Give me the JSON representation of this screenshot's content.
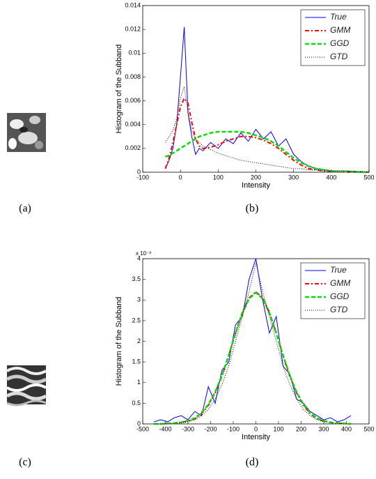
{
  "captions": [
    "(a)",
    "(b)",
    "(c)",
    "(d)"
  ],
  "chart_data": [
    {
      "type": "line",
      "xlabel": "Intensity",
      "ylabel": "Histogram of the Subband",
      "x": [
        -40,
        -30,
        -20,
        -10,
        0,
        10,
        20,
        30,
        40,
        50,
        60,
        80,
        100,
        120,
        140,
        160,
        180,
        200,
        220,
        240,
        260,
        280,
        300,
        320,
        340,
        360,
        380,
        400,
        440,
        480,
        500
      ],
      "series": [
        {
          "name": "True",
          "color": "#0000ff",
          "style": "solid",
          "values": [
            0.0003,
            0.001,
            0.002,
            0.004,
            0.008,
            0.0122,
            0.005,
            0.003,
            0.0015,
            0.002,
            0.0018,
            0.0025,
            0.002,
            0.0028,
            0.0024,
            0.0033,
            0.0026,
            0.0036,
            0.0028,
            0.0034,
            0.0022,
            0.0028,
            0.0015,
            0.0009,
            0.0005,
            0.0003,
            0.0002,
            0.0001,
            0.0001,
            5e-05,
            0
          ]
        },
        {
          "name": "GMM",
          "color": "#ff0000",
          "style": "dashdot",
          "values": [
            0.0003,
            0.0012,
            0.0025,
            0.004,
            0.0055,
            0.0062,
            0.0058,
            0.0042,
            0.0028,
            0.0022,
            0.002,
            0.0021,
            0.0023,
            0.0026,
            0.0028,
            0.003,
            0.003,
            0.0029,
            0.0027,
            0.0024,
            0.002,
            0.0015,
            0.001,
            0.0006,
            0.0003,
            0.0002,
            0.0001,
            5e-05,
            0,
            0,
            0
          ]
        },
        {
          "name": "GGD",
          "color": "#00dd00",
          "style": "dashed",
          "values": [
            0.0013,
            0.0014,
            0.0016,
            0.0018,
            0.002,
            0.0022,
            0.0024,
            0.0026,
            0.0028,
            0.003,
            0.0031,
            0.0033,
            0.0034,
            0.0034,
            0.0034,
            0.0034,
            0.0033,
            0.0031,
            0.0029,
            0.0026,
            0.0022,
            0.0017,
            0.0012,
            0.0008,
            0.0005,
            0.0003,
            0.0002,
            0.0001,
            5e-05,
            0,
            0
          ]
        },
        {
          "name": "GTD",
          "color": "#000000",
          "style": "dotted",
          "values": [
            0.0025,
            0.003,
            0.0035,
            0.0045,
            0.0062,
            0.0072,
            0.005,
            0.0035,
            0.0028,
            0.0025,
            0.0022,
            0.0019,
            0.0016,
            0.0014,
            0.0012,
            0.001,
            0.0009,
            0.0008,
            0.0007,
            0.0006,
            0.0005,
            0.0004,
            0.0003,
            0.0003,
            0.0002,
            0.0002,
            0.0001,
            0.0001,
            0.0001,
            5e-05,
            5e-05
          ]
        }
      ],
      "xlim": [
        -100,
        500
      ],
      "xticks": [
        -100,
        0,
        100,
        200,
        300,
        400,
        500
      ],
      "ylim": [
        0,
        0.014
      ],
      "yticks": [
        0,
        0.002,
        0.004,
        0.006,
        0.008,
        0.01,
        0.012,
        0.014
      ],
      "legend": "upper right"
    },
    {
      "type": "line",
      "xlabel": "Intensity",
      "ylabel": "Histogram of the Subband",
      "y_exponent_label": "x 10⁻³",
      "x": [
        -450,
        -420,
        -390,
        -360,
        -330,
        -300,
        -270,
        -240,
        -210,
        -180,
        -150,
        -120,
        -90,
        -60,
        -30,
        0,
        30,
        60,
        90,
        120,
        150,
        180,
        210,
        240,
        270,
        300,
        330,
        360,
        390,
        420
      ],
      "series": [
        {
          "name": "True",
          "color": "#0000ff",
          "style": "solid",
          "values": [
            0.05,
            0.1,
            0.05,
            0.15,
            0.2,
            0.1,
            0.3,
            0.2,
            0.9,
            0.5,
            1.3,
            1.5,
            2.4,
            2.6,
            3.5,
            4.0,
            3.0,
            2.2,
            2.6,
            1.4,
            1.2,
            0.6,
            0.5,
            0.3,
            0.2,
            0.1,
            0.15,
            0.05,
            0.1,
            0.2
          ]
        },
        {
          "name": "GMM",
          "color": "#ff0000",
          "style": "dashdot",
          "values": [
            0,
            0,
            0.01,
            0.02,
            0.04,
            0.07,
            0.12,
            0.25,
            0.45,
            0.75,
            1.15,
            1.65,
            2.2,
            2.7,
            3.05,
            3.2,
            3.05,
            2.7,
            2.2,
            1.65,
            1.15,
            0.75,
            0.45,
            0.25,
            0.12,
            0.07,
            0.04,
            0.02,
            0.01,
            0
          ]
        },
        {
          "name": "GGD",
          "color": "#00dd00",
          "style": "dashed",
          "values": [
            0,
            0,
            0.01,
            0.02,
            0.04,
            0.08,
            0.14,
            0.27,
            0.47,
            0.77,
            1.17,
            1.66,
            2.2,
            2.68,
            3.03,
            3.18,
            3.03,
            2.68,
            2.2,
            1.66,
            1.17,
            0.77,
            0.47,
            0.27,
            0.14,
            0.08,
            0.04,
            0.02,
            0.01,
            0
          ]
        },
        {
          "name": "GTD",
          "color": "#000000",
          "style": "dotted",
          "values": [
            0,
            0,
            0,
            0.01,
            0.02,
            0.05,
            0.1,
            0.2,
            0.35,
            0.6,
            0.95,
            1.4,
            2.0,
            2.6,
            3.2,
            3.9,
            3.2,
            2.6,
            2.0,
            1.4,
            0.95,
            0.6,
            0.35,
            0.2,
            0.1,
            0.05,
            0.02,
            0.01,
            0,
            0
          ]
        }
      ],
      "xlim": [
        -500,
        500
      ],
      "xticks": [
        -500,
        -400,
        -300,
        -200,
        -100,
        0,
        100,
        200,
        300,
        400,
        500
      ],
      "ylim": [
        0,
        4
      ],
      "yticks": [
        0,
        0.5,
        1,
        1.5,
        2,
        2.5,
        3,
        3.5,
        4
      ],
      "legend": "upper right"
    }
  ]
}
